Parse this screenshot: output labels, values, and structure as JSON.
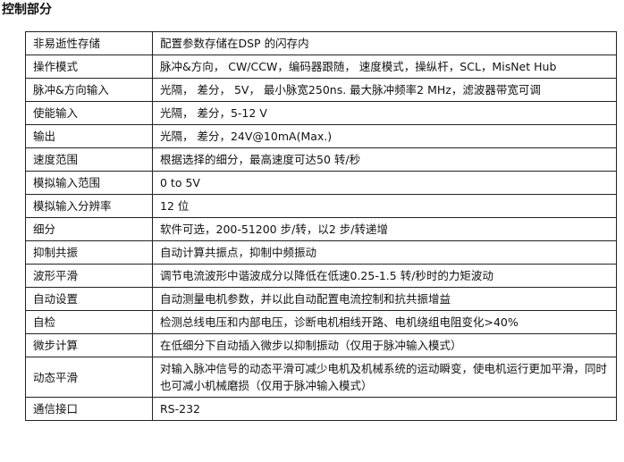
{
  "header": {
    "title": "控制部分"
  },
  "table": {
    "rows": [
      [
        "非易逝性存储",
        "配置参数存储在DSP 的闪存内"
      ],
      [
        "操作模式",
        "脉冲&方向， CW/CCW，编码器跟随， 速度模式，操纵杆，SCL，MisNet Hub"
      ],
      [
        "脉冲&方向输入",
        "光隔， 差分， 5V， 最小脉宽250ns. 最大脉冲频率2 MHz，滤波器带宽可调"
      ],
      [
        "使能输入",
        "光隔， 差分，5-12 V"
      ],
      [
        "输出",
        "光隔， 差分，24V@10mA(Max.)"
      ],
      [
        "速度范围",
        "根据选择的细分，最高速度可达50 转/秒"
      ],
      [
        "模拟输入范围",
        "0 to 5V"
      ],
      [
        "模拟输入分辨率",
        "12 位"
      ],
      [
        "细分",
        "软件可选，200-51200 步/转，以2 步/转递增"
      ],
      [
        "抑制共振",
        "自动计算共振点，抑制中频振动"
      ],
      [
        "波形平滑",
        "调节电流波形中谐波成分以降低在低速0.25-1.5 转/秒时的力矩波动"
      ],
      [
        "自动设置",
        "自动测量电机参数，并以此自动配置电流控制和抗共振增益"
      ],
      [
        "自检",
        "检测总线电压和内部电压，诊断电机相线开路、电机绕组电阻变化>40%"
      ],
      [
        "微步计算",
        "在低细分下自动插入微步以抑制振动（仅用于脉冲输入模式）"
      ],
      [
        "动态平滑",
        "对输入脉冲信号的动态平滑可减少电机及机械系统的运动瞬变，使电机运行更加平滑，同时也可减小机械磨损（仅用于脉冲输入模式）"
      ],
      [
        "通信接口",
        "RS-232"
      ]
    ]
  }
}
